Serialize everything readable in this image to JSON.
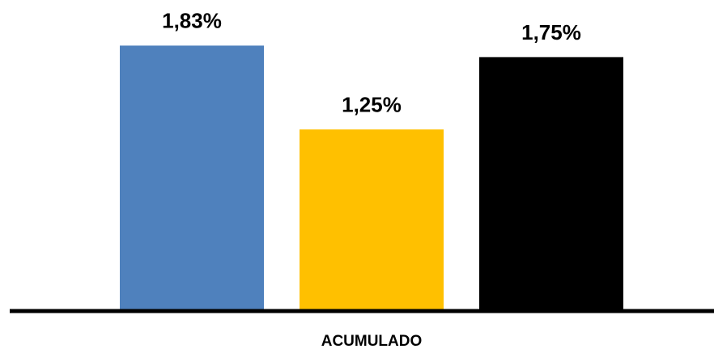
{
  "chart_data": {
    "type": "bar",
    "categories": [
      "ACUMULADO"
    ],
    "series": [
      {
        "values": [
          1.83
        ],
        "label": "1,83%",
        "color": "#4F81BD"
      },
      {
        "values": [
          1.25
        ],
        "label": "1,25%",
        "color": "#FFC000"
      },
      {
        "values": [
          1.75
        ],
        "label": "1,75%",
        "color": "#000000"
      }
    ],
    "title": "",
    "xlabel": "",
    "ylabel": "",
    "ylim": [
      0,
      2.0
    ],
    "grid": false,
    "legend": "none"
  }
}
